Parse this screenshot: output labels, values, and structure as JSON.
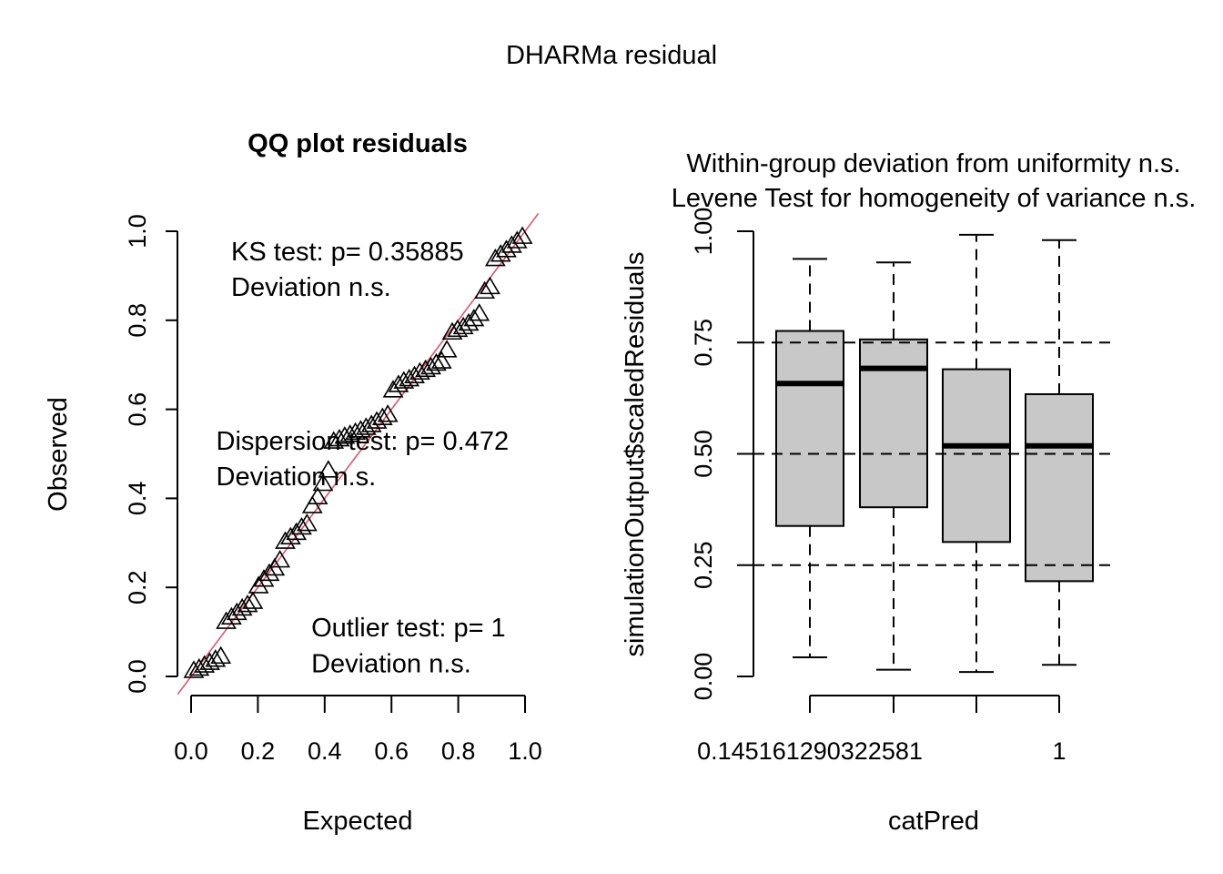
{
  "page_title": "DHARMa residual",
  "chart_data": [
    {
      "type": "scatter",
      "title": "QQ plot residuals",
      "xlabel": "Expected",
      "ylabel": "Observed",
      "xlim": [
        0,
        1
      ],
      "ylim": [
        0,
        1
      ],
      "x_ticks": [
        "0.0",
        "0.2",
        "0.4",
        "0.6",
        "0.8",
        "1.0"
      ],
      "x_tick_values": [
        0,
        0.2,
        0.4,
        0.6,
        0.8,
        1.0
      ],
      "y_ticks": [
        "0.0",
        "0.2",
        "0.4",
        "0.6",
        "0.8",
        "1.0"
      ],
      "y_tick_values": [
        0,
        0.2,
        0.4,
        0.6,
        0.8,
        1.0
      ],
      "marker": "triangle-open",
      "reference_line": {
        "slope": 1,
        "intercept": 0,
        "color": "#df536b"
      },
      "points": {
        "x": [
          0.008,
          0.024,
          0.04,
          0.056,
          0.073,
          0.089,
          0.105,
          0.121,
          0.137,
          0.153,
          0.169,
          0.185,
          0.202,
          0.218,
          0.234,
          0.25,
          0.266,
          0.282,
          0.298,
          0.315,
          0.331,
          0.347,
          0.363,
          0.379,
          0.395,
          0.411,
          0.427,
          0.444,
          0.46,
          0.476,
          0.492,
          0.508,
          0.524,
          0.54,
          0.556,
          0.573,
          0.589,
          0.605,
          0.621,
          0.637,
          0.653,
          0.669,
          0.685,
          0.702,
          0.718,
          0.734,
          0.75,
          0.766,
          0.782,
          0.798,
          0.815,
          0.831,
          0.847,
          0.863,
          0.879,
          0.895,
          0.911,
          0.927,
          0.944,
          0.96,
          0.976,
          0.992
        ],
        "y": [
          0.01,
          0.015,
          0.022,
          0.028,
          0.035,
          0.042,
          0.12,
          0.13,
          0.14,
          0.15,
          0.158,
          0.165,
          0.2,
          0.215,
          0.228,
          0.24,
          0.258,
          0.3,
          0.31,
          0.32,
          0.332,
          0.34,
          0.38,
          0.4,
          0.43,
          0.46,
          0.525,
          0.53,
          0.536,
          0.54,
          0.545,
          0.55,
          0.556,
          0.562,
          0.57,
          0.578,
          0.585,
          0.64,
          0.652,
          0.66,
          0.665,
          0.672,
          0.68,
          0.686,
          0.692,
          0.7,
          0.705,
          0.73,
          0.77,
          0.776,
          0.782,
          0.79,
          0.8,
          0.812,
          0.862,
          0.872,
          0.935,
          0.945,
          0.955,
          0.965,
          0.975,
          0.985
        ]
      },
      "annotations": [
        {
          "text": "KS test: p= 0.35885",
          "x": 0.12,
          "y": 0.955
        },
        {
          "text": "Deviation  n.s.",
          "x": 0.12,
          "y": 0.875
        },
        {
          "text": "Dispersion test: p= 0.472",
          "x": 0.075,
          "y": 0.53
        },
        {
          "text": "Deviation  n.s.",
          "x": 0.075,
          "y": 0.45
        },
        {
          "text": "Outlier test: p= 1",
          "x": 0.36,
          "y": 0.11
        },
        {
          "text": "Deviation  n.s.",
          "x": 0.36,
          "y": 0.03
        }
      ]
    },
    {
      "type": "boxplot",
      "title_lines": [
        "Within-group deviation from uniformity n.s.",
        "Levene Test for homogeneity of variance n.s."
      ],
      "xlabel": "catPred",
      "ylabel": "simulationOutput$scaledResiduals",
      "ylim": [
        0,
        1
      ],
      "y_ticks": [
        "0.00",
        "0.25",
        "0.50",
        "0.75",
        "1.00"
      ],
      "y_tick_values": [
        0,
        0.25,
        0.5,
        0.75,
        1.0
      ],
      "x_tick_labels": [
        "0.145161290322581",
        "",
        "",
        "1"
      ],
      "reference_lines": [
        0.25,
        0.5,
        0.75
      ],
      "box_fill": "#c8c8c8",
      "groups": [
        {
          "min": 0.043,
          "q1": 0.338,
          "median": 0.658,
          "q3": 0.776,
          "max": 0.938
        },
        {
          "min": 0.015,
          "q1": 0.38,
          "median": 0.692,
          "q3": 0.757,
          "max": 0.93
        },
        {
          "min": 0.01,
          "q1": 0.302,
          "median": 0.518,
          "q3": 0.69,
          "max": 0.992
        },
        {
          "min": 0.026,
          "q1": 0.214,
          "median": 0.518,
          "q3": 0.634,
          "max": 0.98
        }
      ]
    }
  ]
}
